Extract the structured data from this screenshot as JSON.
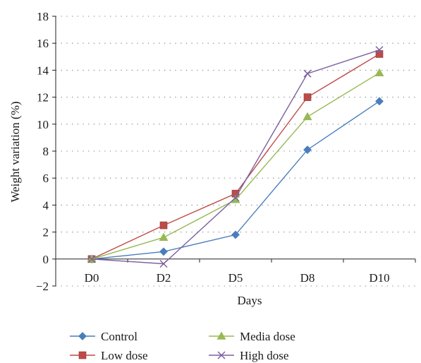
{
  "chart_data": {
    "type": "line",
    "title": "",
    "xlabel": "Days",
    "ylabel": "Weight variation (%)",
    "categories": [
      "D0",
      "D2",
      "D5",
      "D8",
      "D10"
    ],
    "ylim": [
      -2,
      18
    ],
    "yticks": [
      -2,
      0,
      2,
      4,
      6,
      8,
      10,
      12,
      14,
      16,
      18
    ],
    "ytick_labels": [
      "−2",
      "0",
      "2",
      "4",
      "6",
      "8",
      "10",
      "12",
      "14",
      "16",
      "18"
    ],
    "grid": "horizontal dotted",
    "legend_position": "bottom",
    "series": [
      {
        "name": "Control",
        "color": "#4a7ebb",
        "marker": "diamond",
        "values": [
          0,
          0.55,
          1.8,
          8.1,
          11.7
        ]
      },
      {
        "name": "Low dose",
        "color": "#be4b48",
        "marker": "square",
        "values": [
          0,
          2.5,
          4.85,
          12.0,
          15.2
        ]
      },
      {
        "name": "Media dose",
        "color": "#98b954",
        "marker": "triangle",
        "values": [
          0,
          1.6,
          4.4,
          10.55,
          13.8
        ]
      },
      {
        "name": "High dose",
        "color": "#7d60a0",
        "marker": "x",
        "values": [
          0,
          -0.35,
          4.55,
          13.75,
          15.5
        ]
      }
    ]
  }
}
